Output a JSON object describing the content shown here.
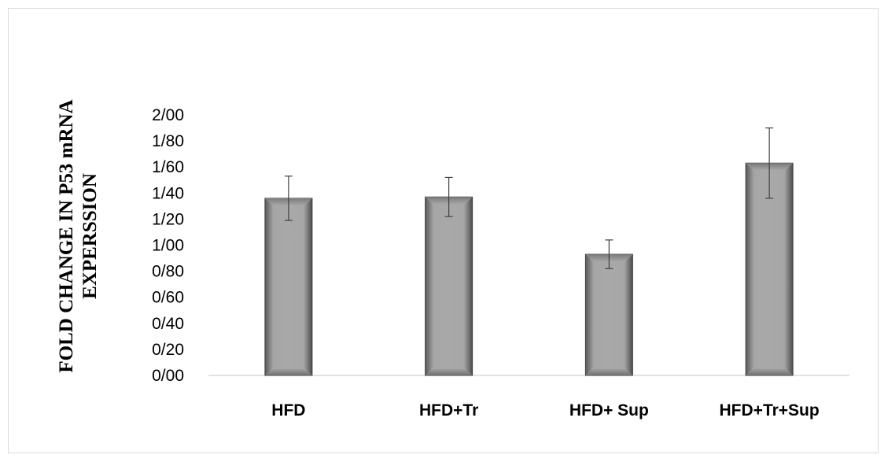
{
  "chart_data": {
    "type": "bar",
    "title": "",
    "xlabel": "",
    "ylabel_lines": [
      "FOLD CHANGE IN P53 mRNA",
      "EXPERSSION"
    ],
    "categories": [
      "HFD",
      "HFD+Tr",
      "HFD+ Sup",
      "HFD+Tr+Sup"
    ],
    "values": [
      1.36,
      1.37,
      0.93,
      1.63
    ],
    "errors": [
      0.17,
      0.15,
      0.11,
      0.27
    ],
    "ylim": [
      0,
      2
    ],
    "yticks": [
      0,
      0.2,
      0.4,
      0.6,
      0.8,
      1.0,
      1.2,
      1.4,
      1.6,
      1.8,
      2.0
    ],
    "ytick_labels": [
      "0/00",
      "0/20",
      "0/40",
      "0/60",
      "0/80",
      "1/00",
      "1/20",
      "1/40",
      "1/60",
      "1/80",
      "2/00"
    ],
    "grid": false,
    "legend": "none",
    "bar_color": "#a6a6a6"
  }
}
